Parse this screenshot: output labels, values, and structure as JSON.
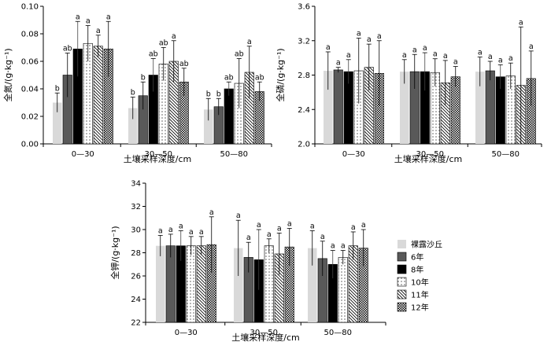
{
  "chart_data": [
    {
      "type": "bar",
      "xlabel": "土壤采样深度/cm",
      "ylabel": "全氮/(g·kg⁻¹)",
      "ylim": [
        0,
        0.1
      ],
      "yticks": [
        "0.00",
        "0.02",
        "0.04",
        "0.06",
        "0.08",
        "0.10"
      ],
      "categories": [
        "0—30",
        "30—50",
        "50—80"
      ],
      "series": [
        {
          "name": "裸露沙丘",
          "values": [
            0.03,
            0.026,
            0.025
          ],
          "errors": [
            0.007,
            0.008,
            0.008
          ],
          "sig": [
            "b",
            "b",
            "b"
          ]
        },
        {
          "name": "6年",
          "values": [
            0.05,
            0.035,
            0.027
          ],
          "errors": [
            0.016,
            0.01,
            0.006
          ],
          "sig": [
            "ab",
            "b",
            "b"
          ]
        },
        {
          "name": "8年",
          "values": [
            0.069,
            0.05,
            0.04
          ],
          "errors": [
            0.02,
            0.012,
            0.005
          ],
          "sig": [
            "a",
            "ab",
            "ab"
          ]
        },
        {
          "name": "10年",
          "values": [
            0.073,
            0.058,
            0.044
          ],
          "errors": [
            0.013,
            0.012,
            0.018
          ],
          "sig": [
            "a",
            "ab",
            "ab"
          ]
        },
        {
          "name": "11年",
          "values": [
            0.071,
            0.06,
            0.052
          ],
          "errors": [
            0.008,
            0.015,
            0.019
          ],
          "sig": [
            "a",
            "a",
            "a"
          ]
        },
        {
          "name": "12年",
          "values": [
            0.069,
            0.045,
            0.038
          ],
          "errors": [
            0.02,
            0.01,
            0.007
          ],
          "sig": [
            "a",
            "ab",
            "ab"
          ]
        }
      ]
    },
    {
      "type": "bar",
      "xlabel": "土壤采样深度/cm",
      "ylabel": "全磷/(g·kg⁻¹)",
      "ylim": [
        2.0,
        3.6
      ],
      "yticks": [
        "2.0",
        "2.4",
        "2.8",
        "3.2",
        "3.6"
      ],
      "categories": [
        "0—30",
        "30—50",
        "50—80"
      ],
      "series": [
        {
          "name": "裸露沙丘",
          "values": [
            2.85,
            2.84,
            2.84
          ],
          "errors": [
            0.22,
            0.14,
            0.17
          ],
          "sig": [
            "a",
            "a",
            "a"
          ]
        },
        {
          "name": "6年",
          "values": [
            2.86,
            2.84,
            2.85
          ],
          "errors": [
            0.03,
            0.2,
            0.11
          ],
          "sig": [
            "a",
            "a",
            "a"
          ]
        },
        {
          "name": "8年",
          "values": [
            2.84,
            2.84,
            2.78
          ],
          "errors": [
            0.14,
            0.22,
            0.14
          ],
          "sig": [
            "a",
            "a",
            "a"
          ]
        },
        {
          "name": "10年",
          "values": [
            2.85,
            2.83,
            2.79
          ],
          "errors": [
            0.38,
            0.16,
            0.15
          ],
          "sig": [
            "a",
            "a",
            "a"
          ]
        },
        {
          "name": "11年",
          "values": [
            2.89,
            2.71,
            2.68
          ],
          "errors": [
            0.27,
            0.26,
            0.68
          ],
          "sig": [
            "a",
            "a",
            "a"
          ]
        },
        {
          "name": "12年",
          "values": [
            2.82,
            2.78,
            2.76
          ],
          "errors": [
            0.38,
            0.12,
            0.32
          ],
          "sig": [
            "a",
            "a",
            "a"
          ]
        }
      ]
    },
    {
      "type": "bar",
      "xlabel": "土壤采样深度/cm",
      "ylabel": "全钾/(g·kg⁻¹)",
      "ylim": [
        22,
        34
      ],
      "yticks": [
        "22",
        "24",
        "26",
        "28",
        "30",
        "32",
        "34"
      ],
      "categories": [
        "0—30",
        "30—50",
        "50—80"
      ],
      "series": [
        {
          "name": "裸露沙丘",
          "values": [
            28.6,
            28.4,
            28.4
          ],
          "errors": [
            0.9,
            2.4,
            1.5
          ],
          "sig": [
            "a",
            "a",
            "a"
          ]
        },
        {
          "name": "6年",
          "values": [
            28.6,
            27.6,
            27.5
          ],
          "errors": [
            1.0,
            1.3,
            1.5
          ],
          "sig": [
            "a",
            "a",
            "a"
          ]
        },
        {
          "name": "8年",
          "values": [
            28.6,
            27.4,
            27.0
          ],
          "errors": [
            1.3,
            2.6,
            1.2
          ],
          "sig": [
            "a",
            "a",
            "a"
          ]
        },
        {
          "name": "10年",
          "values": [
            28.6,
            28.6,
            27.6
          ],
          "errors": [
            0.8,
            0.6,
            0.6
          ],
          "sig": [
            "a",
            "a",
            "a"
          ]
        },
        {
          "name": "11年",
          "values": [
            28.6,
            27.9,
            28.6
          ],
          "errors": [
            0.8,
            1.8,
            1.2
          ],
          "sig": [
            "a",
            "a",
            "a"
          ]
        },
        {
          "name": "12年",
          "values": [
            28.7,
            28.5,
            28.4
          ],
          "errors": [
            2.4,
            1.6,
            1.6
          ],
          "sig": [
            "a",
            "a",
            "a"
          ]
        }
      ]
    }
  ],
  "legend": [
    {
      "label": "裸露沙丘",
      "pattern": "light"
    },
    {
      "label": "6年",
      "pattern": "dark"
    },
    {
      "label": "8年",
      "pattern": "black"
    },
    {
      "label": "10年",
      "pattern": "dots"
    },
    {
      "label": "11年",
      "pattern": "hatch"
    },
    {
      "label": "12年",
      "pattern": "check"
    }
  ]
}
